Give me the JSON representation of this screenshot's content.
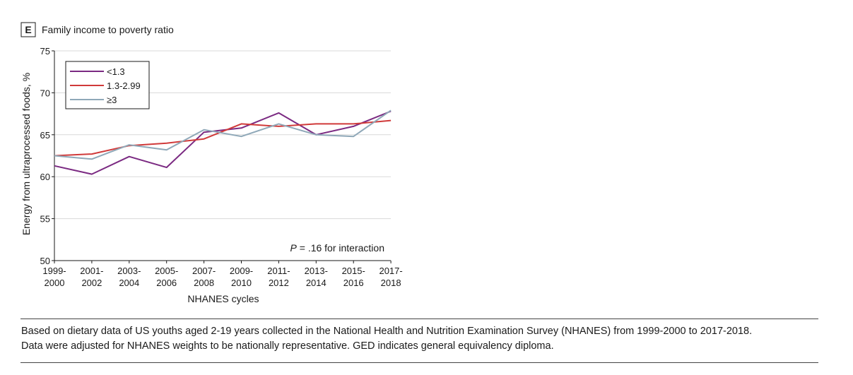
{
  "panel": {
    "letter": "E",
    "title": "Family income to poverty ratio"
  },
  "chart_data": {
    "type": "line",
    "title": "Family income to poverty ratio",
    "xlabel": "NHANES cycles",
    "ylabel": "Energy from ultraprocessed foods, %",
    "ylim": [
      50,
      75
    ],
    "yticks": [
      50,
      55,
      60,
      65,
      70,
      75
    ],
    "categories": [
      "1999-2000",
      "2001-2002",
      "2003-2004",
      "2005-2006",
      "2007-2008",
      "2009-2010",
      "2011-2012",
      "2013-2014",
      "2015-2016",
      "2017-2018"
    ],
    "category_labels": [
      [
        "1999-",
        "2000"
      ],
      [
        "2001-",
        "2002"
      ],
      [
        "2003-",
        "2004"
      ],
      [
        "2005-",
        "2006"
      ],
      [
        "2007-",
        "2008"
      ],
      [
        "2009-",
        "2010"
      ],
      [
        "2011-",
        "2012"
      ],
      [
        "2013-",
        "2014"
      ],
      [
        "2015-",
        "2016"
      ],
      [
        "2017-",
        "2018"
      ]
    ],
    "grid": true,
    "legend_position": "top-left",
    "series": [
      {
        "name": "<1.3",
        "color": "#7b2a82",
        "values": [
          61.3,
          60.3,
          62.4,
          61.1,
          65.3,
          65.8,
          67.6,
          65.0,
          66.0,
          67.8
        ]
      },
      {
        "name": "1.3-2.99",
        "color": "#d03a3a",
        "values": [
          62.5,
          62.7,
          63.7,
          64.0,
          64.5,
          66.3,
          66.0,
          66.3,
          66.3,
          66.7
        ]
      },
      {
        "name": "≥3",
        "color": "#8fa8b8",
        "values": [
          62.5,
          62.1,
          63.8,
          63.2,
          65.6,
          64.8,
          66.3,
          65.0,
          64.8,
          67.9
        ]
      }
    ],
    "annotation": {
      "italic": "P",
      "text": " = .16 for interaction"
    }
  },
  "footnote": [
    "Based on dietary data of US youths aged 2-19 years collected in the National Health and Nutrition Examination Survey (NHANES) from 1999-2000 to 2017-2018.",
    "Data were adjusted for NHANES weights to be nationally representative. GED indicates general equivalency diploma."
  ]
}
